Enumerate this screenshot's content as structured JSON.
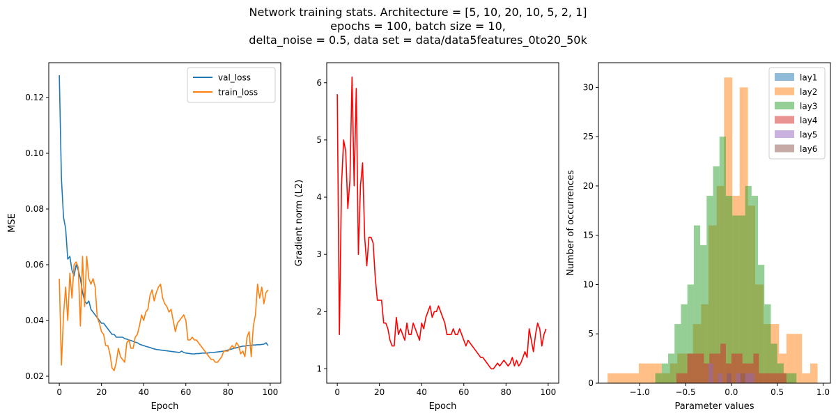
{
  "suptitle": {
    "line1": "Network training stats. Architecture = [5, 10, 20, 10, 5, 2, 1]",
    "line2": "epochs = 100, batch size = 10,",
    "line3": "delta_noise = 0.5, data set = data/data5features_0to20_50k"
  },
  "chart_data": [
    {
      "type": "line",
      "xlabel": "Epoch",
      "ylabel": "MSE",
      "xlim": [
        -5,
        105
      ],
      "ylim": [
        0.0175,
        0.1325
      ],
      "xticks": [
        0,
        20,
        40,
        60,
        80,
        100
      ],
      "yticks": [
        0.02,
        0.04,
        0.06,
        0.08,
        0.1,
        0.12
      ],
      "ytick_labels": [
        "0.02",
        "0.04",
        "0.06",
        "0.08",
        "0.10",
        "0.12"
      ],
      "legend_position": "top-right",
      "series": [
        {
          "name": "val_loss",
          "color": "#1f77b4",
          "values": [
            0.128,
            0.091,
            0.077,
            0.073,
            0.062,
            0.063,
            0.058,
            0.056,
            0.06,
            0.058,
            0.055,
            0.05,
            0.047,
            0.046,
            0.047,
            0.044,
            0.043,
            0.042,
            0.041,
            0.04,
            0.039,
            0.039,
            0.038,
            0.037,
            0.036,
            0.035,
            0.035,
            0.034,
            0.034,
            0.034,
            0.034,
            0.0335,
            0.0333,
            0.033,
            0.0328,
            0.0325,
            0.0322,
            0.032,
            0.0315,
            0.0312,
            0.031,
            0.0307,
            0.0305,
            0.0303,
            0.03,
            0.0298,
            0.0296,
            0.0295,
            0.0294,
            0.0293,
            0.0292,
            0.0291,
            0.029,
            0.0289,
            0.0288,
            0.0287,
            0.0286,
            0.0285,
            0.029,
            0.0285,
            0.0283,
            0.0282,
            0.0281,
            0.028,
            0.028,
            0.0281,
            0.0281,
            0.0282,
            0.0283,
            0.0283,
            0.0283,
            0.0284,
            0.0285,
            0.0285,
            0.0286,
            0.0287,
            0.0288,
            0.0289,
            0.029,
            0.0292,
            0.0294,
            0.0296,
            0.0298,
            0.03,
            0.0302,
            0.0304,
            0.0306,
            0.0308,
            0.0308,
            0.031,
            0.031,
            0.0311,
            0.0312,
            0.0312,
            0.0313,
            0.0313,
            0.0314,
            0.0315,
            0.032,
            0.031
          ]
        },
        {
          "name": "train_loss",
          "color": "#ff7f0e",
          "values": [
            0.055,
            0.024,
            0.042,
            0.052,
            0.04,
            0.057,
            0.048,
            0.06,
            0.061,
            0.059,
            0.038,
            0.063,
            0.045,
            0.063,
            0.055,
            0.053,
            0.055,
            0.052,
            0.041,
            0.039,
            0.036,
            0.035,
            0.031,
            0.031,
            0.028,
            0.023,
            0.022,
            0.025,
            0.03,
            0.027,
            0.026,
            0.025,
            0.032,
            0.033,
            0.03,
            0.03,
            0.034,
            0.035,
            0.038,
            0.042,
            0.04,
            0.043,
            0.044,
            0.049,
            0.051,
            0.047,
            0.05,
            0.052,
            0.053,
            0.048,
            0.046,
            0.045,
            0.043,
            0.044,
            0.04,
            0.036,
            0.039,
            0.04,
            0.041,
            0.042,
            0.04,
            0.033,
            0.033,
            0.034,
            0.033,
            0.033,
            0.032,
            0.031,
            0.03,
            0.029,
            0.028,
            0.027,
            0.026,
            0.026,
            0.025,
            0.025,
            0.026,
            0.027,
            0.029,
            0.029,
            0.029,
            0.03,
            0.031,
            0.03,
            0.032,
            0.031,
            0.028,
            0.029,
            0.027,
            0.034,
            0.036,
            0.027,
            0.038,
            0.042,
            0.053,
            0.048,
            0.052,
            0.046,
            0.05,
            0.051
          ]
        }
      ]
    },
    {
      "type": "line",
      "xlabel": "Epoch",
      "ylabel": "Gradient norm (L2)",
      "xlim": [
        -5,
        105
      ],
      "ylim": [
        0.75,
        6.35
      ],
      "xticks": [
        0,
        20,
        40,
        60,
        80,
        100
      ],
      "yticks": [
        1,
        2,
        3,
        4,
        5,
        6
      ],
      "series": [
        {
          "color": "#ff0000",
          "values": [
            5.8,
            1.6,
            4.2,
            5.0,
            4.8,
            3.8,
            4.3,
            6.1,
            4.2,
            5.9,
            3.0,
            4.2,
            4.6,
            3.3,
            2.8,
            3.3,
            3.3,
            3.2,
            2.6,
            2.2,
            2.2,
            2.2,
            1.8,
            1.8,
            1.7,
            1.5,
            1.4,
            1.4,
            1.9,
            1.6,
            1.7,
            1.6,
            1.5,
            1.8,
            1.6,
            1.6,
            1.8,
            1.7,
            1.6,
            1.5,
            1.8,
            1.7,
            1.9,
            2.0,
            2.1,
            1.9,
            2.0,
            2.0,
            2.1,
            2.0,
            1.9,
            1.8,
            1.6,
            1.6,
            1.6,
            1.7,
            1.6,
            1.6,
            1.7,
            1.6,
            1.5,
            1.4,
            1.5,
            1.45,
            1.4,
            1.35,
            1.3,
            1.25,
            1.2,
            1.2,
            1.15,
            1.1,
            1.05,
            1.0,
            1.0,
            1.05,
            1.1,
            1.05,
            1.1,
            1.15,
            1.1,
            1.05,
            1.1,
            1.2,
            1.05,
            1.15,
            1.05,
            1.1,
            1.2,
            1.3,
            1.2,
            1.7,
            1.5,
            1.3,
            1.6,
            1.8,
            1.7,
            1.4,
            1.6,
            1.7
          ]
        }
      ]
    },
    {
      "type": "histogram",
      "xlabel": "Parameter values",
      "ylabel": "Number of occurrences",
      "xlim": [
        -1.45,
        1.08
      ],
      "ylim": [
        0,
        32.5
      ],
      "xticks": [
        -1.0,
        -0.5,
        0.0,
        0.5,
        1.0
      ],
      "xtick_labels": [
        "−1.0",
        "−0.5",
        "0.0",
        "0.5",
        "1.0"
      ],
      "yticks": [
        0,
        5,
        10,
        15,
        20,
        25,
        30
      ],
      "legend_position": "top-right",
      "bar_opacity": 0.5,
      "series": [
        {
          "name": "lay1",
          "color": "#1f77b4",
          "bins": []
        },
        {
          "name": "lay2",
          "color": "#ff7f0e",
          "bins": [
            {
              "x0": -1.35,
              "x1": -1.27,
              "count": 1
            },
            {
              "x0": -1.27,
              "x1": -1.18,
              "count": 1
            },
            {
              "x0": -1.18,
              "x1": -1.1,
              "count": 1
            },
            {
              "x0": -1.1,
              "x1": -1.01,
              "count": 1
            },
            {
              "x0": -1.01,
              "x1": -0.93,
              "count": 2
            },
            {
              "x0": -0.93,
              "x1": -0.84,
              "count": 2
            },
            {
              "x0": -0.84,
              "x1": -0.76,
              "count": 2
            },
            {
              "x0": -0.76,
              "x1": -0.67,
              "count": 1
            },
            {
              "x0": -0.67,
              "x1": -0.59,
              "count": 2
            },
            {
              "x0": -0.59,
              "x1": -0.5,
              "count": 3
            },
            {
              "x0": -0.5,
              "x1": -0.42,
              "count": 3
            },
            {
              "x0": -0.42,
              "x1": -0.33,
              "count": 6
            },
            {
              "x0": -0.33,
              "x1": -0.25,
              "count": 8
            },
            {
              "x0": -0.25,
              "x1": -0.16,
              "count": 16
            },
            {
              "x0": -0.16,
              "x1": -0.08,
              "count": 20
            },
            {
              "x0": -0.08,
              "x1": 0.01,
              "count": 31
            },
            {
              "x0": 0.01,
              "x1": 0.09,
              "count": 19
            },
            {
              "x0": 0.09,
              "x1": 0.18,
              "count": 30
            },
            {
              "x0": 0.18,
              "x1": 0.26,
              "count": 18
            },
            {
              "x0": 0.26,
              "x1": 0.35,
              "count": 10
            },
            {
              "x0": 0.35,
              "x1": 0.43,
              "count": 6
            },
            {
              "x0": 0.43,
              "x1": 0.52,
              "count": 6
            },
            {
              "x0": 0.52,
              "x1": 0.6,
              "count": 3
            },
            {
              "x0": 0.6,
              "x1": 0.69,
              "count": 5
            },
            {
              "x0": 0.69,
              "x1": 0.77,
              "count": 5
            },
            {
              "x0": 0.77,
              "x1": 0.86,
              "count": 1
            },
            {
              "x0": 0.86,
              "x1": 0.94,
              "count": 2
            }
          ]
        },
        {
          "name": "lay3",
          "color": "#2ca02c",
          "bins": [
            {
              "x0": -0.83,
              "x1": -0.76,
              "count": 1
            },
            {
              "x0": -0.76,
              "x1": -0.69,
              "count": 2
            },
            {
              "x0": -0.69,
              "x1": -0.62,
              "count": 3
            },
            {
              "x0": -0.62,
              "x1": -0.55,
              "count": 6
            },
            {
              "x0": -0.55,
              "x1": -0.48,
              "count": 8
            },
            {
              "x0": -0.48,
              "x1": -0.41,
              "count": 10
            },
            {
              "x0": -0.41,
              "x1": -0.34,
              "count": 16
            },
            {
              "x0": -0.34,
              "x1": -0.27,
              "count": 14
            },
            {
              "x0": -0.27,
              "x1": -0.2,
              "count": 19
            },
            {
              "x0": -0.2,
              "x1": -0.13,
              "count": 22
            },
            {
              "x0": -0.13,
              "x1": -0.06,
              "count": 25
            },
            {
              "x0": -0.06,
              "x1": 0.01,
              "count": 19
            },
            {
              "x0": 0.01,
              "x1": 0.08,
              "count": 17
            },
            {
              "x0": 0.08,
              "x1": 0.15,
              "count": 17
            },
            {
              "x0": 0.15,
              "x1": 0.22,
              "count": 20
            },
            {
              "x0": 0.22,
              "x1": 0.29,
              "count": 19
            },
            {
              "x0": 0.29,
              "x1": 0.36,
              "count": 12
            },
            {
              "x0": 0.36,
              "x1": 0.43,
              "count": 8
            },
            {
              "x0": 0.43,
              "x1": 0.5,
              "count": 4
            },
            {
              "x0": 0.5,
              "x1": 0.57,
              "count": 2
            },
            {
              "x0": 0.57,
              "x1": 0.64,
              "count": 1
            },
            {
              "x0": 0.64,
              "x1": 0.71,
              "count": 1
            }
          ]
        },
        {
          "name": "lay4",
          "color": "#d62728",
          "bins": [
            {
              "x0": -0.6,
              "x1": -0.54,
              "count": 1
            },
            {
              "x0": -0.54,
              "x1": -0.48,
              "count": 1
            },
            {
              "x0": -0.48,
              "x1": -0.42,
              "count": 3
            },
            {
              "x0": -0.42,
              "x1": -0.36,
              "count": 3
            },
            {
              "x0": -0.36,
              "x1": -0.3,
              "count": 3
            },
            {
              "x0": -0.3,
              "x1": -0.24,
              "count": 2
            },
            {
              "x0": -0.24,
              "x1": -0.18,
              "count": 3
            },
            {
              "x0": -0.18,
              "x1": -0.12,
              "count": 3
            },
            {
              "x0": -0.12,
              "x1": -0.06,
              "count": 4
            },
            {
              "x0": -0.06,
              "x1": 0.0,
              "count": 2
            },
            {
              "x0": 0.0,
              "x1": 0.06,
              "count": 3
            },
            {
              "x0": 0.06,
              "x1": 0.12,
              "count": 3
            },
            {
              "x0": 0.12,
              "x1": 0.18,
              "count": 2
            },
            {
              "x0": 0.18,
              "x1": 0.24,
              "count": 2
            },
            {
              "x0": 0.24,
              "x1": 0.3,
              "count": 3
            },
            {
              "x0": 0.3,
              "x1": 0.36,
              "count": 1
            },
            {
              "x0": 0.36,
              "x1": 0.42,
              "count": 1
            },
            {
              "x0": 0.42,
              "x1": 0.48,
              "count": 1
            },
            {
              "x0": 0.48,
              "x1": 0.54,
              "count": 1
            },
            {
              "x0": 0.54,
              "x1": 0.6,
              "count": 1
            }
          ]
        },
        {
          "name": "lay5",
          "color": "#9467bd",
          "bins": [
            {
              "x0": -0.25,
              "x1": -0.2,
              "count": 2
            },
            {
              "x0": -0.15,
              "x1": -0.1,
              "count": 1
            },
            {
              "x0": -0.05,
              "x1": 0.0,
              "count": 1
            },
            {
              "x0": 0.05,
              "x1": 0.1,
              "count": 1
            },
            {
              "x0": 0.15,
              "x1": 0.2,
              "count": 1
            },
            {
              "x0": 0.2,
              "x1": 0.25,
              "count": 1
            }
          ]
        },
        {
          "name": "lay6",
          "color": "#8c564b",
          "bins": [
            {
              "x0": -0.05,
              "x1": 0.0,
              "count": 1
            },
            {
              "x0": 0.1,
              "x1": 0.15,
              "count": 1
            }
          ]
        }
      ]
    }
  ]
}
